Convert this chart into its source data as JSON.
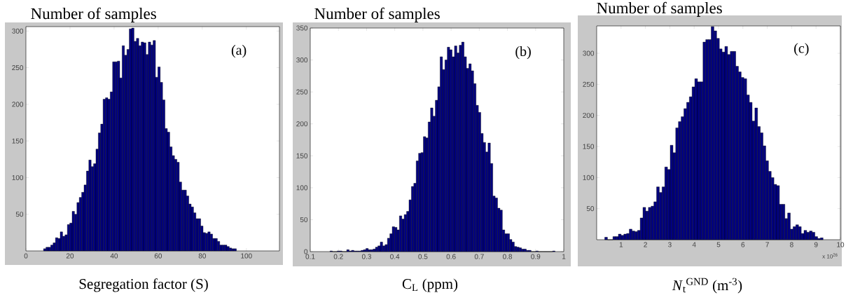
{
  "chart_data": [
    {
      "type": "histogram",
      "ylabel": "Number of samples",
      "xlabel": "Segregation factor (S)",
      "annotations": [
        "(a)"
      ],
      "color": "#000080",
      "bins": [
        8.0,
        9.08,
        10.16,
        11.24,
        12.32,
        13.4,
        14.48,
        15.56,
        16.64,
        17.72,
        18.8,
        19.88,
        20.96,
        22.04,
        23.12,
        24.2,
        25.28,
        26.36,
        27.44,
        28.52,
        29.6,
        30.68,
        31.76,
        32.84,
        33.92,
        35.0,
        36.08,
        37.16,
        38.24,
        39.32,
        40.4,
        41.48,
        42.56,
        43.64,
        44.72,
        45.8,
        46.88,
        47.96,
        49.04,
        50.12,
        51.2,
        52.28,
        53.36,
        54.44,
        55.52,
        56.6,
        57.68,
        58.76,
        59.84,
        60.92,
        62.0,
        63.08,
        64.16,
        65.24,
        66.32,
        67.4,
        68.48,
        69.56,
        70.64,
        71.72,
        72.8,
        73.88,
        74.96,
        76.04,
        77.12,
        78.2,
        79.28,
        80.36,
        81.44,
        82.52,
        83.6,
        84.68,
        85.76,
        86.84,
        87.92,
        89.0,
        90.08,
        91.16,
        92.24,
        93.32,
        94.4,
        95.48
      ],
      "values": [
        3,
        5,
        5,
        8,
        11,
        18,
        17,
        26,
        20,
        22,
        36,
        38,
        54,
        50,
        66,
        73,
        80,
        90,
        109,
        124,
        115,
        119,
        139,
        161,
        173,
        207,
        209,
        207,
        217,
        258,
        258,
        259,
        236,
        280,
        267,
        275,
        303,
        304,
        286,
        290,
        280,
        285,
        284,
        268,
        285,
        281,
        287,
        237,
        251,
        230,
        206,
        167,
        162,
        142,
        130,
        125,
        121,
        94,
        83,
        83,
        75,
        64,
        60,
        52,
        44,
        44,
        34,
        25,
        24,
        26,
        23,
        17,
        17,
        13,
        8,
        8,
        8,
        6,
        4,
        3,
        3
      ],
      "xlim": [
        0,
        115
      ],
      "ylim": [
        0,
        306
      ],
      "xticks": [
        0,
        20,
        40,
        60,
        80,
        100
      ],
      "yticks": [
        50,
        100,
        150,
        200,
        250,
        300
      ]
    },
    {
      "type": "histogram",
      "ylabel": "Number of samples",
      "xlabel": "C$_{L}$ (ppm)",
      "annotations": [
        "(b)"
      ],
      "color": "#000080",
      "bins": [
        0.17,
        0.1785,
        0.187,
        0.1955,
        0.204,
        0.2125,
        0.221,
        0.2295,
        0.238,
        0.2465,
        0.255,
        0.2635,
        0.272,
        0.2805,
        0.289,
        0.2975,
        0.306,
        0.3145,
        0.323,
        0.3315,
        0.34,
        0.3485,
        0.357,
        0.3655,
        0.374,
        0.3825,
        0.391,
        0.3995,
        0.408,
        0.4165,
        0.425,
        0.4335,
        0.442,
        0.4505,
        0.459,
        0.4675,
        0.476,
        0.4845,
        0.493,
        0.5015,
        0.51,
        0.5185,
        0.527,
        0.5355,
        0.544,
        0.5525,
        0.561,
        0.5695,
        0.578,
        0.5865,
        0.595,
        0.6035,
        0.612,
        0.6205,
        0.629,
        0.6375,
        0.646,
        0.6545,
        0.663,
        0.6715,
        0.68,
        0.6885,
        0.697,
        0.7055,
        0.714,
        0.7225,
        0.731,
        0.7395,
        0.748,
        0.7565,
        0.765,
        0.7735,
        0.782,
        0.7905,
        0.799,
        0.8075,
        0.816,
        0.8245,
        0.833,
        0.8415,
        0.85,
        0.8585,
        0.867,
        0.8755,
        0.884,
        0.8925,
        0.901,
        0.9095,
        0.918,
        0.9265,
        0.935,
        0.9435,
        0.952,
        0.9605,
        0.969
      ],
      "values": [
        1,
        0,
        0,
        1,
        1,
        0,
        0,
        3,
        1,
        2,
        1,
        1,
        1,
        2,
        3,
        5,
        3,
        3,
        4,
        7,
        9,
        15,
        9,
        11,
        21,
        28,
        39,
        38,
        34,
        56,
        51,
        58,
        63,
        81,
        102,
        107,
        142,
        154,
        155,
        180,
        178,
        203,
        225,
        212,
        237,
        258,
        305,
        285,
        300,
        320,
        316,
        305,
        322,
        311,
        323,
        328,
        305,
        287,
        294,
        283,
        263,
        229,
        218,
        185,
        171,
        156,
        170,
        138,
        87,
        84,
        68,
        65,
        34,
        28,
        28,
        19,
        15,
        8,
        7,
        6,
        4,
        4,
        2,
        2,
        0,
        0,
        1,
        0,
        0,
        0,
        0,
        0,
        0,
        1
      ],
      "xlim": [
        0.1,
        1
      ],
      "ylim": [
        0,
        350
      ],
      "xticks": [
        0.1,
        0.2,
        0.3,
        0.4,
        0.5,
        0.6,
        0.7,
        0.8,
        0.9,
        1
      ],
      "yticks": [
        0,
        50,
        100,
        150,
        200,
        250,
        300,
        350
      ]
    },
    {
      "type": "histogram",
      "ylabel": "Number of samples",
      "xlabel": "*N*$_{t}$$^{GND}$ (m$^{-3}$)",
      "annotations": [
        "(c)",
        "x 10$^{26}$"
      ],
      "color": "#000080",
      "bins": [
        0.33,
        0.442,
        0.554,
        0.666,
        0.778,
        0.89,
        1.002,
        1.114,
        1.226,
        1.338,
        1.45,
        1.562,
        1.674,
        1.786,
        1.898,
        2.01,
        2.122,
        2.234,
        2.346,
        2.458,
        2.57,
        2.682,
        2.794,
        2.906,
        3.018,
        3.13,
        3.242,
        3.354,
        3.466,
        3.578,
        3.69,
        3.802,
        3.914,
        4.026,
        4.138,
        4.25,
        4.362,
        4.474,
        4.586,
        4.698,
        4.81,
        4.922,
        5.034,
        5.146,
        5.258,
        5.37,
        5.482,
        5.594,
        5.706,
        5.818,
        5.93,
        6.042,
        6.154,
        6.266,
        6.378,
        6.49,
        6.602,
        6.714,
        6.826,
        6.938,
        7.05,
        7.162,
        7.274,
        7.386,
        7.498,
        7.61,
        7.722,
        7.834,
        7.946,
        8.058,
        8.17,
        8.282,
        8.394,
        8.506,
        8.618,
        8.73,
        8.842,
        8.954,
        9.066,
        9.178,
        9.29
      ],
      "values": [
        4,
        0,
        0,
        5,
        5,
        9,
        7,
        9,
        10,
        17,
        14,
        13,
        15,
        35,
        52,
        46,
        52,
        54,
        61,
        85,
        76,
        85,
        117,
        113,
        152,
        140,
        180,
        190,
        198,
        211,
        221,
        230,
        246,
        259,
        254,
        254,
        318,
        322,
        322,
        343,
        336,
        324,
        307,
        302,
        311,
        298,
        303,
        303,
        279,
        270,
        261,
        259,
        233,
        221,
        191,
        212,
        182,
        172,
        151,
        127,
        110,
        100,
        89,
        87,
        57,
        57,
        34,
        43,
        17,
        21,
        24,
        21,
        10,
        15,
        12,
        14,
        12,
        5,
        2,
        3
      ],
      "xlim": [
        0,
        10
      ],
      "ylim": [
        0,
        344
      ],
      "xticks": [
        1,
        2,
        3,
        4,
        5,
        6,
        7,
        8,
        9,
        10
      ],
      "yticks": [
        50,
        100,
        150,
        200,
        250,
        300
      ]
    }
  ]
}
